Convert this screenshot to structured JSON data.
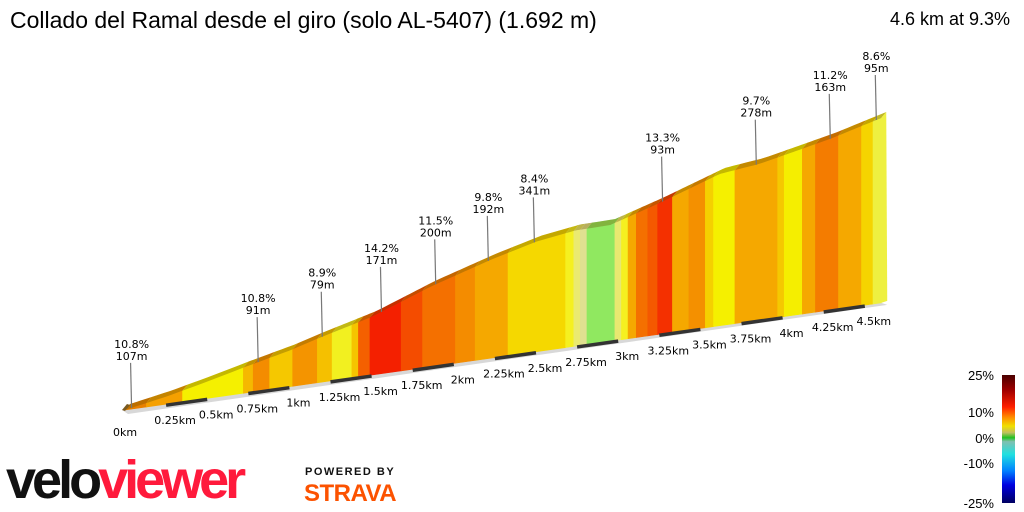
{
  "header": {
    "title": "Collado del Ramal desde el giro (solo AL-5407) (1.692 m)",
    "summary": "4.6 km at 9.3%"
  },
  "chart_data": {
    "type": "area",
    "title": "Collado del Ramal desde el giro (solo AL-5407) (1.692 m)",
    "xlabel": "",
    "ylabel": "",
    "x_unit": "km",
    "xlim": [
      0,
      4.6
    ],
    "profile": [
      [
        0,
        0
      ],
      [
        0.25,
        17
      ],
      [
        0.5,
        38
      ],
      [
        0.73,
        59
      ],
      [
        1.0,
        82
      ],
      [
        1.19,
        102
      ],
      [
        1.5,
        132
      ],
      [
        1.86,
        182
      ],
      [
        2.22,
        223
      ],
      [
        2.5,
        250
      ],
      [
        2.74,
        263
      ],
      [
        2.95,
        264
      ],
      [
        3.25,
        298
      ],
      [
        3.62,
        345
      ],
      [
        3.86,
        355
      ],
      [
        4.29,
        389
      ],
      [
        4.6,
        420
      ]
    ],
    "segments": [
      [
        0,
        0.13,
        "#e88000"
      ],
      [
        0.13,
        0.35,
        "#f5a000"
      ],
      [
        0.35,
        0.72,
        "#f5f000"
      ],
      [
        0.72,
        0.78,
        "#f5b800"
      ],
      [
        0.78,
        0.88,
        "#f48c00"
      ],
      [
        0.88,
        1.02,
        "#f5c800"
      ],
      [
        1.02,
        1.17,
        "#f49400"
      ],
      [
        1.17,
        1.26,
        "#f5c000"
      ],
      [
        1.26,
        1.38,
        "#f2f020"
      ],
      [
        1.38,
        1.42,
        "#f5c400"
      ],
      [
        1.42,
        1.49,
        "#f46000"
      ],
      [
        1.49,
        1.68,
        "#f42000"
      ],
      [
        1.68,
        1.81,
        "#f44c00"
      ],
      [
        1.81,
        2.01,
        "#f47000"
      ],
      [
        2.01,
        2.13,
        "#f48c00"
      ],
      [
        2.13,
        2.33,
        "#f5a800"
      ],
      [
        2.33,
        2.68,
        "#f5d800"
      ],
      [
        2.68,
        2.73,
        "#f5f020"
      ],
      [
        2.73,
        2.77,
        "#eaea70"
      ],
      [
        2.77,
        2.81,
        "#e0e090"
      ],
      [
        2.81,
        2.98,
        "#90e860"
      ],
      [
        2.98,
        3.02,
        "#e8e870"
      ],
      [
        3.02,
        3.06,
        "#f5f020"
      ],
      [
        3.06,
        3.11,
        "#f5a800"
      ],
      [
        3.11,
        3.18,
        "#f47000"
      ],
      [
        3.18,
        3.24,
        "#f45800"
      ],
      [
        3.24,
        3.33,
        "#f43000"
      ],
      [
        3.33,
        3.43,
        "#f5a800"
      ],
      [
        3.43,
        3.53,
        "#f49000"
      ],
      [
        3.53,
        3.58,
        "#f5d000"
      ],
      [
        3.58,
        3.71,
        "#f5f000"
      ],
      [
        3.71,
        3.97,
        "#f5a800"
      ],
      [
        3.97,
        4.01,
        "#f5c800"
      ],
      [
        4.01,
        4.12,
        "#f5ee00"
      ],
      [
        4.12,
        4.2,
        "#f5a800"
      ],
      [
        4.2,
        4.34,
        "#f47c00"
      ],
      [
        4.34,
        4.48,
        "#f5a800"
      ],
      [
        4.48,
        4.55,
        "#f5d400"
      ],
      [
        4.55,
        4.6,
        "#eef040"
      ]
    ],
    "annotations": [
      {
        "km": 0.04,
        "grade": "10.8%",
        "length": "107m"
      },
      {
        "km": 0.81,
        "grade": "10.8%",
        "length": "91m"
      },
      {
        "km": 1.2,
        "grade": "8.9%",
        "length": "79m"
      },
      {
        "km": 1.56,
        "grade": "14.2%",
        "length": "171m"
      },
      {
        "km": 1.89,
        "grade": "11.5%",
        "length": "200m"
      },
      {
        "km": 2.21,
        "grade": "9.8%",
        "length": "192m"
      },
      {
        "km": 2.49,
        "grade": "8.4%",
        "length": "341m"
      },
      {
        "km": 3.27,
        "grade": "13.3%",
        "length": "93m"
      },
      {
        "km": 3.84,
        "grade": "9.7%",
        "length": "278m"
      },
      {
        "km": 4.29,
        "grade": "11.2%",
        "length": "163m"
      },
      {
        "km": 4.57,
        "grade": "8.6%",
        "length": "95m"
      }
    ],
    "x_ticks": [
      {
        "km": 0,
        "label": "0km"
      },
      {
        "km": 0.25,
        "label": "0.25km"
      },
      {
        "km": 0.5,
        "label": "0.5km"
      },
      {
        "km": 0.75,
        "label": "0.75km"
      },
      {
        "km": 1,
        "label": "1km"
      },
      {
        "km": 1.25,
        "label": "1.25km"
      },
      {
        "km": 1.5,
        "label": "1.5km"
      },
      {
        "km": 1.75,
        "label": "1.75km"
      },
      {
        "km": 2,
        "label": "2km"
      },
      {
        "km": 2.25,
        "label": "2.25km"
      },
      {
        "km": 2.5,
        "label": "2.5km"
      },
      {
        "km": 2.75,
        "label": "2.75km"
      },
      {
        "km": 3,
        "label": "3km"
      },
      {
        "km": 3.25,
        "label": "3.25km"
      },
      {
        "km": 3.5,
        "label": "3.5km"
      },
      {
        "km": 3.75,
        "label": "3.75km"
      },
      {
        "km": 4,
        "label": "4km"
      },
      {
        "km": 4.25,
        "label": "4.25km"
      },
      {
        "km": 4.5,
        "label": "4.5km"
      }
    ],
    "legend": {
      "type": "gradient-scale",
      "placement": "bottom-right",
      "labels": [
        "25%",
        "10%",
        "0%",
        "-10%",
        "-25%"
      ]
    }
  },
  "branding": {
    "logo_part1": "velo",
    "logo_part2": "viewer",
    "powered_by": "POWERED BY",
    "strava": "STRAVA",
    "logo_red": "#ff1a3c",
    "strava_orange": "#fc5200"
  }
}
